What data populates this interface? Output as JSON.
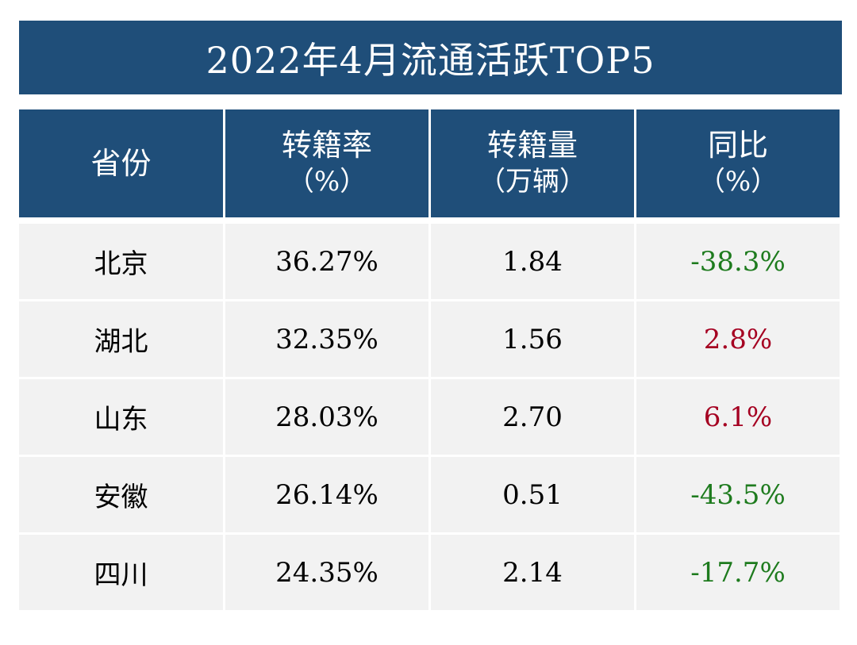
{
  "colors": {
    "header_bg": "#1f4e79",
    "row_bg": "#f2f2f2",
    "positive": "#a50021",
    "negative": "#1e7b1e"
  },
  "chart_data": {
    "type": "table",
    "title": "2022年4月流通活跃TOP5",
    "columns": [
      {
        "label": "省份",
        "unit": ""
      },
      {
        "label": "转籍率",
        "unit": "（%）"
      },
      {
        "label": "转籍量",
        "unit": "（万辆）"
      },
      {
        "label": "同比",
        "unit": "（%）"
      }
    ],
    "rows": [
      {
        "province": "北京",
        "rate": "36.27%",
        "volume": "1.84",
        "yoy": "-38.3%",
        "trend": "neg"
      },
      {
        "province": "湖北",
        "rate": "32.35%",
        "volume": "1.56",
        "yoy": "2.8%",
        "trend": "pos"
      },
      {
        "province": "山东",
        "rate": "28.03%",
        "volume": "2.70",
        "yoy": "6.1%",
        "trend": "pos"
      },
      {
        "province": "安徽",
        "rate": "26.14%",
        "volume": "0.51",
        "yoy": "-43.5%",
        "trend": "neg"
      },
      {
        "province": "四川",
        "rate": "24.35%",
        "volume": "2.14",
        "yoy": "-17.7%",
        "trend": "neg"
      }
    ]
  }
}
